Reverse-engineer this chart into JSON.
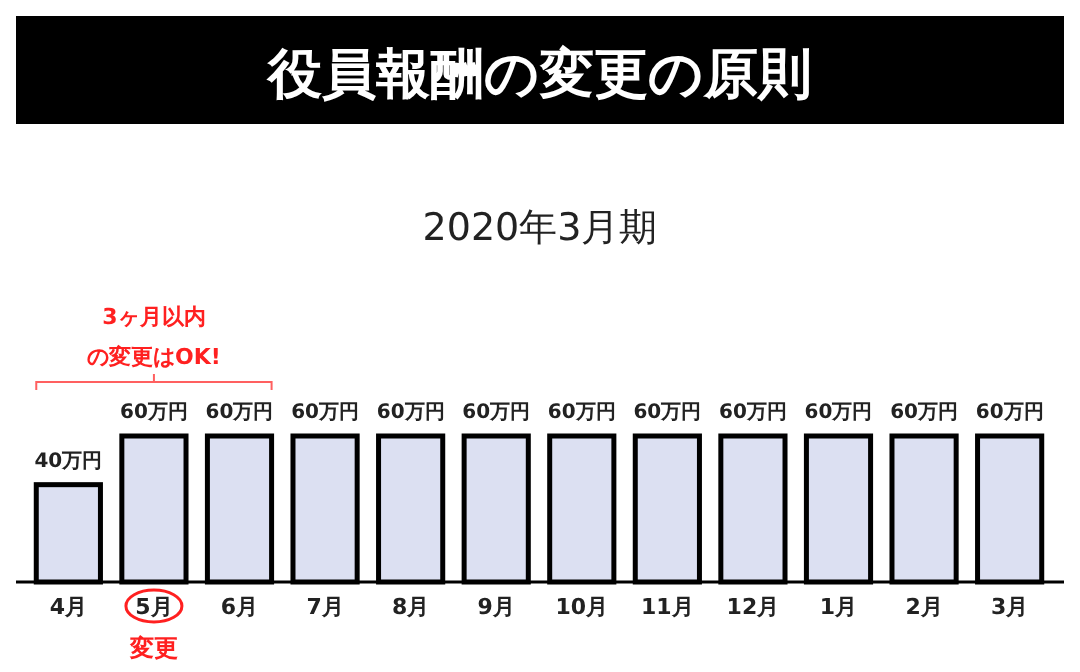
{
  "chart_data": {
    "type": "bar",
    "title": "役員報酬の変更の原則",
    "subtitle": "2020年3月期",
    "categories": [
      "4月",
      "5月",
      "6月",
      "7月",
      "8月",
      "9月",
      "10月",
      "11月",
      "12月",
      "1月",
      "2月",
      "3月"
    ],
    "values": [
      40,
      60,
      60,
      60,
      60,
      60,
      60,
      60,
      60,
      60,
      60,
      60
    ],
    "value_labels": [
      "40万円",
      "60万円",
      "60万円",
      "60万円",
      "60万円",
      "60万円",
      "60万円",
      "60万円",
      "60万円",
      "60万円",
      "60万円",
      "60万円"
    ],
    "color": "#dce0f2",
    "annotations": [
      "3ヶ月以内",
      "の変更はOK!",
      "変更"
    ]
  }
}
